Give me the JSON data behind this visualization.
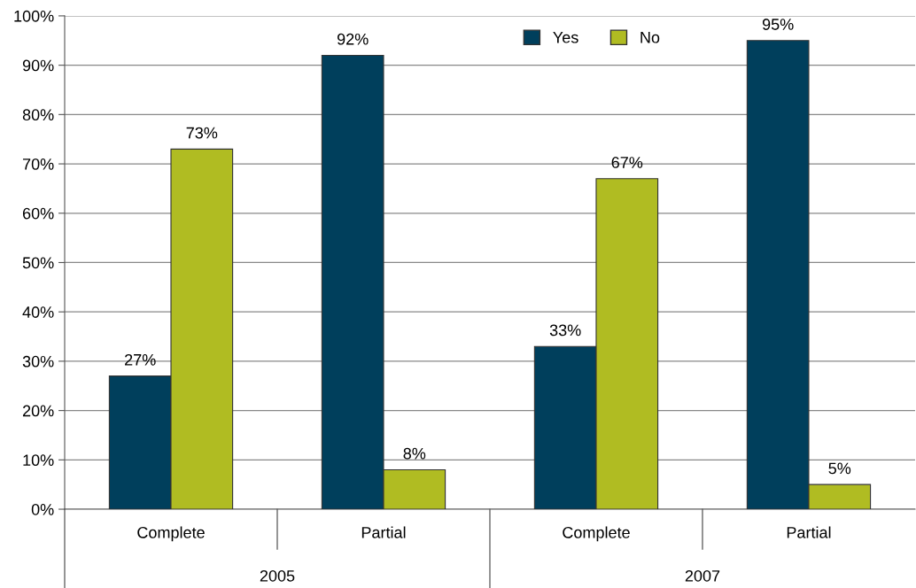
{
  "chart_data": {
    "type": "bar",
    "categories": [
      "Complete",
      "Partial",
      "Complete",
      "Partial"
    ],
    "series": [
      {
        "name": "Yes",
        "color": "#003f5c",
        "values": [
          27,
          92,
          33,
          95
        ],
        "value_labels": [
          "27%",
          "92%",
          "33%",
          "95%"
        ]
      },
      {
        "name": "No",
        "color": "#b0bc22",
        "values": [
          73,
          8,
          67,
          5
        ],
        "value_labels": [
          "73%",
          "8%",
          "67%",
          "5%"
        ]
      }
    ],
    "annotations": [
      "2005",
      "2007"
    ],
    "ylim": [
      0,
      100
    ],
    "yticks": [
      {
        "value": 0,
        "label": "0%"
      },
      {
        "value": 10,
        "label": "10%"
      },
      {
        "value": 20,
        "label": "20%"
      },
      {
        "value": 30,
        "label": "30%"
      },
      {
        "value": 40,
        "label": "40%"
      },
      {
        "value": 50,
        "label": "50%"
      },
      {
        "value": 60,
        "label": "60%"
      },
      {
        "value": 70,
        "label": "70%"
      },
      {
        "value": 80,
        "label": "80%"
      },
      {
        "value": 90,
        "label": "90%"
      },
      {
        "value": 100,
        "label": "100%"
      }
    ],
    "grid": "y",
    "legend": "top"
  }
}
